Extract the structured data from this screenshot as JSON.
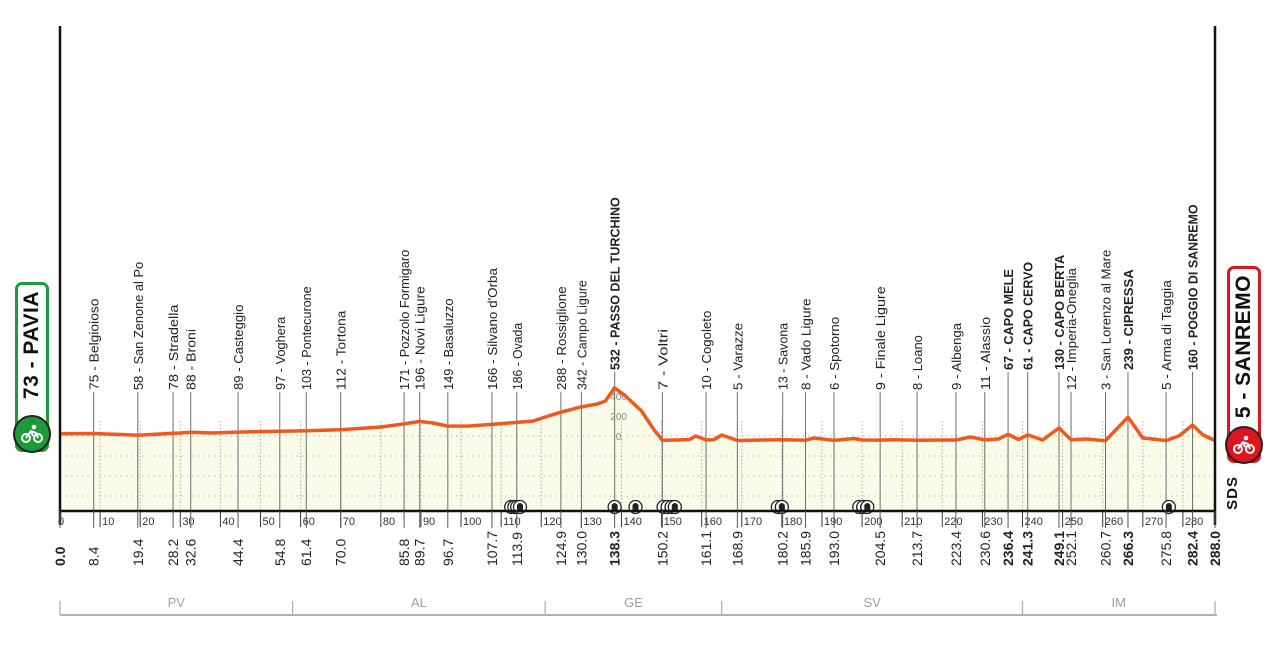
{
  "chart_data": {
    "type": "line",
    "title": "",
    "xlabel": "km",
    "ylabel": "m",
    "xlim": [
      0,
      288
    ],
    "ylim": [
      0,
      532
    ],
    "x_ticks": [
      0,
      10,
      20,
      30,
      40,
      50,
      60,
      70,
      80,
      90,
      100,
      110,
      120,
      130,
      140,
      150,
      160,
      170,
      180,
      190,
      200,
      210,
      220,
      230,
      240,
      250,
      260,
      270,
      280
    ],
    "elevation_ticks": [
      0,
      200,
      400
    ],
    "profile": [
      [
        0,
        73
      ],
      [
        8.4,
        75
      ],
      [
        15,
        65
      ],
      [
        19.4,
        58
      ],
      [
        25,
        70
      ],
      [
        28.2,
        78
      ],
      [
        30,
        80
      ],
      [
        32.6,
        88
      ],
      [
        38,
        80
      ],
      [
        44.4,
        89
      ],
      [
        54.8,
        97
      ],
      [
        61.4,
        103
      ],
      [
        70.0,
        112
      ],
      [
        80,
        140
      ],
      [
        85.8,
        171
      ],
      [
        89.7,
        196
      ],
      [
        93,
        180
      ],
      [
        96.7,
        149
      ],
      [
        102,
        150
      ],
      [
        107.7,
        166
      ],
      [
        113.9,
        186
      ],
      [
        118,
        200
      ],
      [
        121,
        240
      ],
      [
        124.9,
        288
      ],
      [
        130.0,
        342
      ],
      [
        134,
        370
      ],
      [
        136,
        400
      ],
      [
        138.3,
        532
      ],
      [
        141,
        450
      ],
      [
        145,
        300
      ],
      [
        148,
        120
      ],
      [
        150.2,
        7
      ],
      [
        154,
        10
      ],
      [
        157,
        15
      ],
      [
        158.5,
        50
      ],
      [
        161.1,
        10
      ],
      [
        163,
        12
      ],
      [
        165,
        60
      ],
      [
        168.9,
        5
      ],
      [
        175,
        10
      ],
      [
        180.2,
        13
      ],
      [
        185.9,
        8
      ],
      [
        188,
        30
      ],
      [
        193.0,
        6
      ],
      [
        198,
        25
      ],
      [
        200,
        10
      ],
      [
        204.5,
        9
      ],
      [
        208,
        12
      ],
      [
        213.7,
        8
      ],
      [
        220,
        10
      ],
      [
        223.4,
        9
      ],
      [
        227,
        40
      ],
      [
        230.6,
        11
      ],
      [
        234,
        20
      ],
      [
        236.4,
        67
      ],
      [
        239,
        15
      ],
      [
        241.3,
        61
      ],
      [
        245,
        10
      ],
      [
        249.1,
        130
      ],
      [
        252.1,
        12
      ],
      [
        256,
        20
      ],
      [
        260.7,
        3
      ],
      [
        263,
        100
      ],
      [
        266.3,
        239
      ],
      [
        270,
        30
      ],
      [
        275.8,
        5
      ],
      [
        279,
        50
      ],
      [
        282.4,
        160
      ],
      [
        285,
        60
      ],
      [
        288.0,
        5
      ]
    ],
    "waypoints": [
      {
        "km": "0.0",
        "alt": 73,
        "name": "PAVIA",
        "major": true
      },
      {
        "km": "8.4",
        "alt": 75,
        "name": "Belgioioso"
      },
      {
        "km": "19.4",
        "alt": 58,
        "name": "San Zenone al Po"
      },
      {
        "km": "28.2",
        "alt": 78,
        "name": "Stradella"
      },
      {
        "km": "32.6",
        "alt": 88,
        "name": "Broni"
      },
      {
        "km": "44.4",
        "alt": 89,
        "name": "Casteggio"
      },
      {
        "km": "54.8",
        "alt": 97,
        "name": "Voghera"
      },
      {
        "km": "61.4",
        "alt": 103,
        "name": "Pontecurone"
      },
      {
        "km": "70.0",
        "alt": 112,
        "name": "Tortona"
      },
      {
        "km": "85.8",
        "alt": 171,
        "name": "Pozzolo Formigaro"
      },
      {
        "km": "89.7",
        "alt": 196,
        "name": "Novi Ligure"
      },
      {
        "km": "96.7",
        "alt": 149,
        "name": "Basaluzzo"
      },
      {
        "km": "107.7",
        "alt": 166,
        "name": "Silvano d'Orba"
      },
      {
        "km": "113.9",
        "alt": 186,
        "name": "Ovada"
      },
      {
        "km": "124.9",
        "alt": 288,
        "name": "Rossiglione"
      },
      {
        "km": "130.0",
        "alt": 342,
        "name": "Campo Ligure"
      },
      {
        "km": "138.3",
        "alt": 532,
        "name": "PASSO DEL TURCHINO",
        "major": true
      },
      {
        "km": "150.2",
        "alt": 7,
        "name": "Voltri"
      },
      {
        "km": "161.1",
        "alt": 10,
        "name": "Cogoleto"
      },
      {
        "km": "168.9",
        "alt": 5,
        "name": "Varazze"
      },
      {
        "km": "180.2",
        "alt": 13,
        "name": "Savona"
      },
      {
        "km": "185.9",
        "alt": 8,
        "name": "Vado Ligure"
      },
      {
        "km": "193.0",
        "alt": 6,
        "name": "Spotorno"
      },
      {
        "km": "204.5",
        "alt": 9,
        "name": "Finale Ligure"
      },
      {
        "km": "213.7",
        "alt": 8,
        "name": "Loano"
      },
      {
        "km": "223.4",
        "alt": 9,
        "name": "Albenga"
      },
      {
        "km": "230.6",
        "alt": 11,
        "name": "Alassio"
      },
      {
        "km": "236.4",
        "alt": 67,
        "name": "CAPO MELE",
        "major": true
      },
      {
        "km": "241.3",
        "alt": 61,
        "name": "CAPO CERVO",
        "major": true
      },
      {
        "km": "249.1",
        "alt": 130,
        "name": "CAPO BERTA",
        "major": true
      },
      {
        "km": "252.1",
        "alt": 12,
        "name": "Imperia-Oneglia"
      },
      {
        "km": "260.7",
        "alt": 3,
        "name": "San Lorenzo al Mare"
      },
      {
        "km": "266.3",
        "alt": 239,
        "name": "CIPRESSA",
        "major": true
      },
      {
        "km": "275.8",
        "alt": 5,
        "name": "Arma di Taggia"
      },
      {
        "km": "282.4",
        "alt": 160,
        "name": "POGGIO DI SANREMO",
        "major": true
      },
      {
        "km": "288.0",
        "alt": 5,
        "name": "SANREMO",
        "major": true
      }
    ],
    "tunnels_km": [
      112.5,
      113.3,
      114.0,
      114.7,
      138.3,
      143.5,
      150.5,
      151.5,
      152.5,
      153.3,
      179.0,
      180.0,
      199.3,
      200.3,
      201.3,
      276.5
    ],
    "provinces": [
      {
        "code": "PV",
        "from_km": 0,
        "to_km": 58
      },
      {
        "code": "AL",
        "from_km": 58,
        "to_km": 121
      },
      {
        "code": "GE",
        "from_km": 121,
        "to_km": 165
      },
      {
        "code": "SV",
        "from_km": 165,
        "to_km": 240
      },
      {
        "code": "IM",
        "from_km": 240,
        "to_km": 288
      }
    ]
  },
  "start": {
    "label": "73 - PAVIA"
  },
  "finish": {
    "label": "5 - SANREMO"
  },
  "logo": "SDS",
  "colors": {
    "profile_line": "#ee5a1e",
    "profile_fill": "#fbfbe9",
    "start_badge": "#1f9a3a",
    "finish_badge": "#e0141e",
    "axis": "#111111",
    "province_text": "#a0a0a0"
  }
}
